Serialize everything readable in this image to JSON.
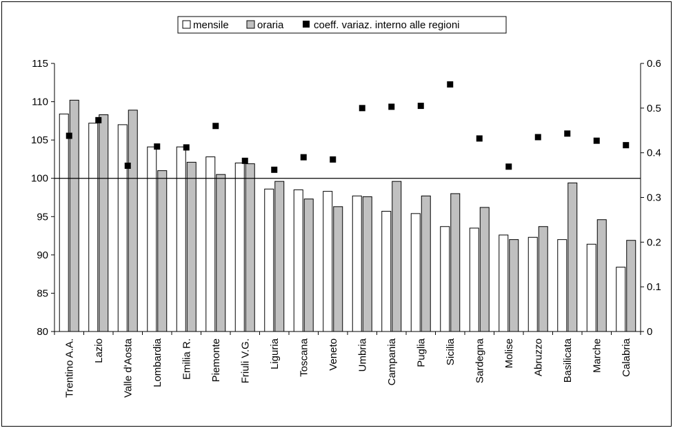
{
  "chart_data": {
    "type": "bar",
    "title": "",
    "xlabel": "",
    "ylabel": "",
    "ylim": [
      80,
      115
    ],
    "yticks": [
      80,
      85,
      90,
      95,
      100,
      105,
      110,
      115
    ],
    "y2lim": [
      0,
      0.6
    ],
    "y2ticks": [
      "0",
      "0.1",
      "0.2",
      "0.3",
      "0.4",
      "0.5",
      "0.6"
    ],
    "reference_line": 100,
    "grid": false,
    "legend": "top-center",
    "categories": [
      "Trentino A.A.",
      "Lazio",
      "Valle d'Aosta",
      "Lombardia",
      "Emilia R.",
      "Piemonte",
      "Friuli V.G.",
      "Liguria",
      "Toscana",
      "Veneto",
      "Umbria",
      "Campania",
      "Puglia",
      "Sicilia",
      "Sardegna",
      "Molise",
      "Abruzzo",
      "Basilicata",
      "Marche",
      "Calabria"
    ],
    "series": [
      {
        "name": "mensile",
        "kind": "bar",
        "color": "#ffffff",
        "values": [
          108.4,
          107.2,
          107.0,
          104.1,
          104.1,
          102.8,
          102.0,
          98.6,
          98.5,
          98.3,
          97.7,
          95.7,
          95.4,
          93.7,
          93.5,
          92.6,
          92.3,
          92.0,
          91.4,
          88.4
        ]
      },
      {
        "name": "oraria",
        "kind": "bar",
        "color": "#c0c0c0",
        "values": [
          110.2,
          108.3,
          108.9,
          101.0,
          102.1,
          100.5,
          101.9,
          99.6,
          97.3,
          96.3,
          97.6,
          99.6,
          97.7,
          98.0,
          96.2,
          92.0,
          93.7,
          99.4,
          94.6,
          91.9
        ]
      },
      {
        "name": "coeff. variaz. interno alle regioni",
        "kind": "scatter",
        "axis": "right",
        "color": "#000000",
        "values": [
          0.438,
          0.473,
          0.371,
          0.414,
          0.412,
          0.46,
          0.382,
          0.362,
          0.39,
          0.385,
          0.5,
          0.503,
          0.505,
          0.553,
          0.432,
          0.369,
          0.435,
          0.443,
          0.427,
          0.417
        ]
      }
    ]
  }
}
